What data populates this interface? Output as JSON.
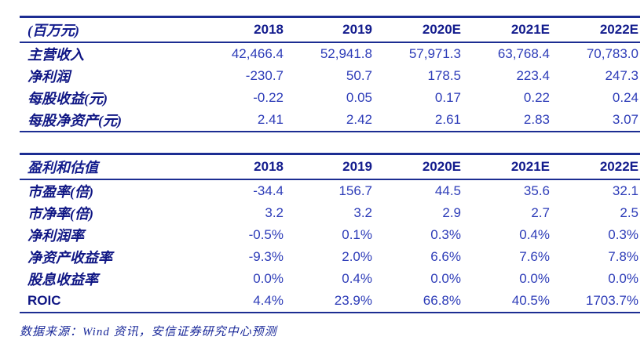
{
  "tables": [
    {
      "name": "income-forecast-table",
      "header": [
        "(百万元)",
        "2018",
        "2019",
        "2020E",
        "2021E",
        "2022E"
      ],
      "rows": [
        [
          "主营收入",
          "42,466.4",
          "52,941.8",
          "57,971.3",
          "63,768.4",
          "70,783.0"
        ],
        [
          "净利润",
          "-230.7",
          "50.7",
          "178.5",
          "223.4",
          "247.3"
        ],
        [
          "每股收益(元)",
          "-0.22",
          "0.05",
          "0.17",
          "0.22",
          "0.24"
        ],
        [
          "每股净资产(元)",
          "2.41",
          "2.42",
          "2.61",
          "2.83",
          "3.07"
        ]
      ]
    },
    {
      "name": "valuation-table",
      "header": [
        "盈利和估值",
        "2018",
        "2019",
        "2020E",
        "2021E",
        "2022E"
      ],
      "rows": [
        [
          "市盈率(倍)",
          "-34.4",
          "156.7",
          "44.5",
          "35.6",
          "32.1"
        ],
        [
          "市净率(倍)",
          "3.2",
          "3.2",
          "2.9",
          "2.7",
          "2.5"
        ],
        [
          "净利润率",
          "-0.5%",
          "0.1%",
          "0.3%",
          "0.4%",
          "0.3%"
        ],
        [
          "净资产收益率",
          "-9.3%",
          "2.0%",
          "6.6%",
          "7.6%",
          "7.8%"
        ],
        [
          "股息收益率",
          "0.0%",
          "0.4%",
          "0.0%",
          "0.0%",
          "0.0%"
        ],
        [
          "ROIC",
          "4.4%",
          "23.9%",
          "66.8%",
          "40.5%",
          "1703.7%"
        ]
      ]
    }
  ],
  "footer": {
    "source_note": "数据来源：Wind 资讯，安信证券研究中心预测"
  },
  "colors": {
    "border_navy": "#1c2d92",
    "header_text": "#131c8d",
    "label_text": "#0f1684",
    "value_text": "#2d3cb8",
    "footer_text": "#1b2a9a",
    "background": "#ffffff"
  }
}
